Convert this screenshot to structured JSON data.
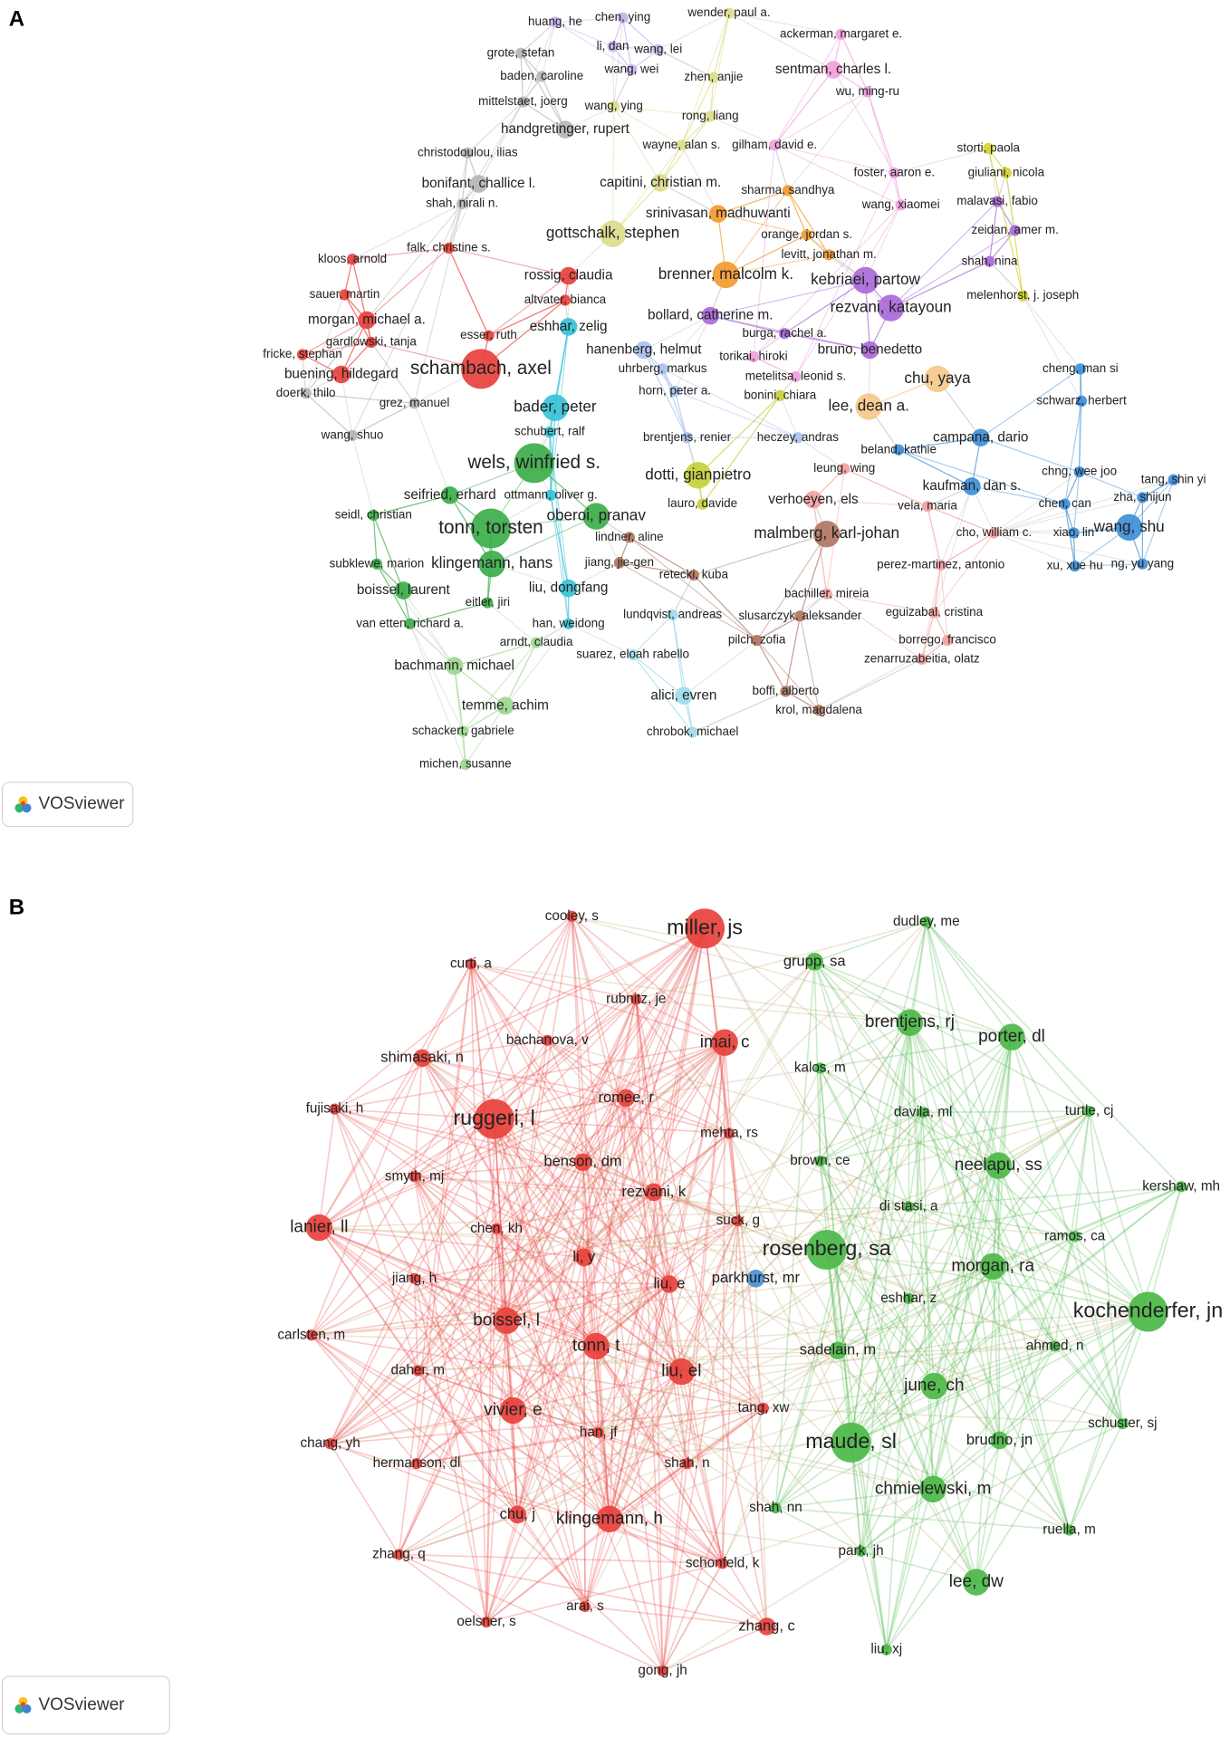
{
  "panels": [
    {
      "label": "A",
      "logo": "VOSviewer",
      "clusters": [
        {
          "color": "#e8413c",
          "nodes": [
            "falk, christine s.",
            "kloos, arnold",
            "rossig, claudia",
            "sauer, martin",
            "altvater, bianca",
            "morgan, michael a.",
            "gardlowski, tanja",
            "esser, ruth",
            "fricke, stephan",
            "schambach, axel",
            "buening, hildegard"
          ]
        },
        {
          "color": "#b5b5b5",
          "nodes": [
            "grote, stefan",
            "baden, caroline",
            "mittelstaet, joerg",
            "handgretinger, rupert",
            "christodoulou, ilias",
            "bonifant, challice l.",
            "shah, nirali n.",
            "doerk, thilo",
            "grez, manuel",
            "wang, shuo"
          ]
        },
        {
          "color": "#c8b2e8",
          "nodes": [
            "huang, he",
            "chen, ying",
            "li, dan",
            "wang, lei",
            "wang, wei"
          ]
        },
        {
          "color": "#dcdc8c",
          "nodes": [
            "wender, paul a.",
            "zhen, anjie",
            "wang, ying",
            "rong, liang",
            "wayne, alan s.",
            "capitini, christian m.",
            "gottschalk, stephen"
          ]
        },
        {
          "color": "#f0a0dc",
          "nodes": [
            "ackerman, margaret e.",
            "sentman, charles l.",
            "wu, ming-ru",
            "gilham, david e.",
            "foster, aaron e.",
            "wang, xiaomei",
            "torikai, hiroki",
            "metelitsa, leonid s."
          ]
        },
        {
          "color": "#f39a30",
          "nodes": [
            "sharma, sandhya",
            "srinivasan, madhuwanti",
            "orange, jordan s.",
            "brenner, malcolm k.",
            "levitt, jonathan m."
          ]
        },
        {
          "color": "#a96ad8",
          "nodes": [
            "malavasi, fabio",
            "zeidan, amer m.",
            "shah, nina",
            "kebriaei, partow",
            "rezvani, katayoun",
            "burga, rachel a.",
            "bruno, benedetto",
            "bollard, catherine m."
          ]
        },
        {
          "color": "#d2d22e",
          "nodes": [
            "storti, paola",
            "giuliani, nicola",
            "melenhorst, j. joseph"
          ]
        },
        {
          "color": "#f6c88c",
          "nodes": [
            "chu, yaya",
            "lee, dean a."
          ]
        },
        {
          "color": "#3e8ed8",
          "nodes": [
            "cheng, man si",
            "schwarz, herbert",
            "campana, dario",
            "chng, wee joo",
            "tang, shin yi",
            "zha, shijun",
            "chen, can",
            "kaufman, dan s.",
            "wang, shu",
            "xiao, lin",
            "xu, xue hu",
            "ng, yu yang",
            "beland, kathie"
          ]
        },
        {
          "color": "#f2a2a2",
          "nodes": [
            "leung, wing",
            "verhoeyen, els",
            "vela, maria",
            "cho, william c.",
            "perez-martinez, antonio",
            "bachiller, mireia",
            "eguizabal, cristina",
            "borrego, francisco",
            "zenarruzabeitia, olatz"
          ]
        },
        {
          "color": "#b07664",
          "nodes": [
            "malmberg, karl-johan",
            "lindner, aline",
            "jiang, jie-gen",
            "retecki, kuba",
            "slusarczyk, aleksander",
            "pilch, zofia",
            "boffi, alberto",
            "krol, magdalena"
          ]
        },
        {
          "color": "#a9c2ec",
          "nodes": [
            "hanenberg, helmut",
            "uhrberg, markus",
            "horn, peter a.",
            "brentjens, renier",
            "heczey, andras"
          ]
        },
        {
          "color": "#38c2d6",
          "nodes": [
            "eshhar, zelig",
            "bader, peter",
            "schubert, ralf",
            "ottmann, oliver g.",
            "liu, dongfang",
            "han, weidong"
          ]
        },
        {
          "color": "#3cae4a",
          "nodes": [
            "wels, winfried s.",
            "seifried, erhard",
            "seidl, christian",
            "oberoi, pranav",
            "tonn, torsten",
            "subklewe, marion",
            "klingemann, hans",
            "boissel, laurent",
            "eitler, jiri",
            "van etten, richard a."
          ]
        },
        {
          "color": "#9ed68e",
          "nodes": [
            "arndt, claudia",
            "bachmann, michael",
            "temme, achim",
            "schackert, gabriele",
            "michen, susanne"
          ]
        },
        {
          "color": "#c6d03a",
          "nodes": [
            "dotti, gianpietro",
            "lauro, davide",
            "bonini, chiara"
          ]
        },
        {
          "color": "#9edcea",
          "nodes": [
            "suarez, eloah rabello",
            "lundqvist, andreas",
            "alici, evren",
            "chrobok, michael"
          ]
        }
      ]
    },
    {
      "label": "B",
      "logo": "VOSviewer",
      "clusters": [
        {
          "color": "#e8413c",
          "nodes": [
            "cooley, s",
            "miller, js",
            "curti, a",
            "rubnitz, je",
            "bachanova, v",
            "imai, c",
            "shimasaki, n",
            "fujisaki, h",
            "ruggeri, l",
            "romee, r",
            "mehta, rs",
            "smyth, mj",
            "benson, dm",
            "rezvani, k",
            "suck, g",
            "lanier, ll",
            "chen, kh",
            "li, y",
            "jiang, h",
            "liu, e",
            "boissel, l",
            "carlsten, m",
            "tonn, t",
            "daher, m",
            "liu, el",
            "tang, xw",
            "vivier, e",
            "han, jf",
            "chang, yh",
            "hermanson, dl",
            "shah, n",
            "chu, j",
            "klingemann, h",
            "zhang, q",
            "schonfeld, k",
            "arai, s",
            "oelsner, s",
            "zhang, c",
            "gong, jh"
          ]
        },
        {
          "color": "#4cb848",
          "nodes": [
            "dudley, me",
            "grupp, sa",
            "brentjens, rj",
            "porter, dl",
            "kalos, m",
            "davila, ml",
            "turtle, cj",
            "brown, ce",
            "neelapu, ss",
            "kershaw, mh",
            "di stasi, a",
            "ramos, ca",
            "rosenberg, sa",
            "morgan, ra",
            "eshhar, z",
            "kochenderfer, jn",
            "ahmed, n",
            "sadelain, m",
            "june, ch",
            "schuster, sj",
            "maude, sl",
            "brudno, jn",
            "chmielewski, m",
            "shah, nn",
            "ruella, m",
            "park, jh",
            "lee, dw",
            "liu, xj"
          ]
        },
        {
          "color": "#4a90d9",
          "nodes": [
            "parkhurst, mr"
          ]
        }
      ]
    }
  ]
}
